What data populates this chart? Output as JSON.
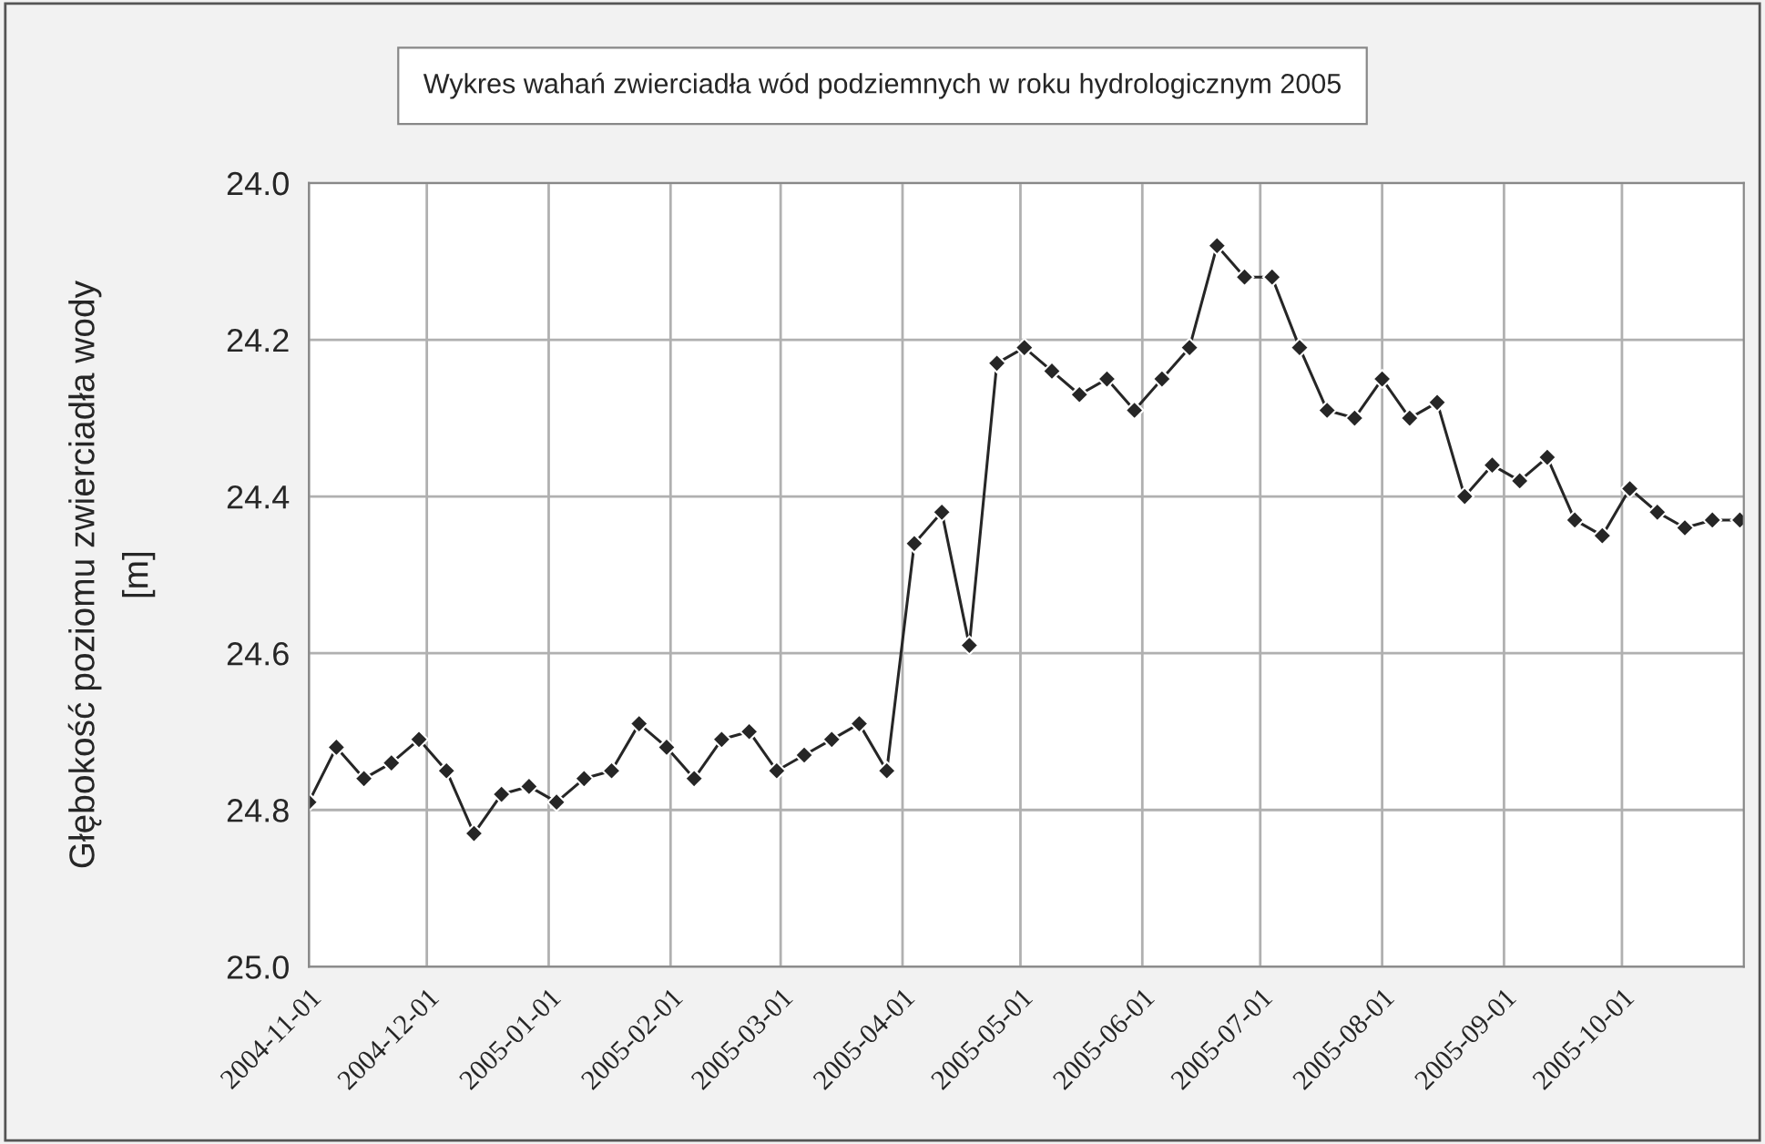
{
  "chart_data": {
    "type": "line",
    "title": "Wykres wahań zwierciadła wód podziemnych w roku hydrologicznym 2005",
    "ylabel": "Głębokość poziomu zwierciadła wody\n[m]",
    "x": [
      "2004-11-01",
      "2004-11-08",
      "2004-11-15",
      "2004-11-22",
      "2004-11-29",
      "2004-12-06",
      "2004-12-13",
      "2004-12-20",
      "2004-12-27",
      "2005-01-03",
      "2005-01-10",
      "2005-01-17",
      "2005-01-24",
      "2005-01-31",
      "2005-02-07",
      "2005-02-14",
      "2005-02-21",
      "2005-02-28",
      "2005-03-07",
      "2005-03-14",
      "2005-03-21",
      "2005-03-28",
      "2005-04-04",
      "2005-04-11",
      "2005-04-18",
      "2005-04-25",
      "2005-05-02",
      "2005-05-09",
      "2005-05-16",
      "2005-05-23",
      "2005-05-30",
      "2005-06-06",
      "2005-06-13",
      "2005-06-20",
      "2005-06-27",
      "2005-07-04",
      "2005-07-11",
      "2005-07-18",
      "2005-07-25",
      "2005-08-01",
      "2005-08-08",
      "2005-08-15",
      "2005-08-22",
      "2005-08-29",
      "2005-09-05",
      "2005-09-12",
      "2005-09-19",
      "2005-09-26",
      "2005-10-03",
      "2005-10-10",
      "2005-10-17",
      "2005-10-24",
      "2005-10-31"
    ],
    "series": [
      {
        "color": "#262626",
        "values": [
          24.79,
          24.72,
          24.76,
          24.74,
          24.71,
          24.75,
          24.83,
          24.78,
          24.77,
          24.79,
          24.76,
          24.75,
          24.69,
          24.72,
          24.76,
          24.71,
          24.7,
          24.75,
          24.73,
          24.71,
          24.69,
          24.75,
          24.46,
          24.42,
          24.59,
          24.23,
          24.21,
          24.24,
          24.27,
          24.25,
          24.29,
          24.25,
          24.21,
          24.08,
          24.12,
          24.12,
          24.21,
          24.29,
          24.3,
          24.25,
          24.3,
          24.28,
          24.4,
          24.36,
          24.38,
          24.35,
          24.43,
          24.45,
          24.39,
          24.42,
          24.44,
          24.43,
          24.43
        ]
      }
    ],
    "xlim": [
      "2004-11-01",
      "2005-11-01"
    ],
    "xticks": [
      "2004-11-01",
      "2004-12-01",
      "2005-01-01",
      "2005-02-01",
      "2005-03-01",
      "2005-04-01",
      "2005-05-01",
      "2005-06-01",
      "2005-07-01",
      "2005-08-01",
      "2005-09-01",
      "2005-10-01"
    ],
    "ylim": [
      25.0,
      24.0
    ],
    "yticks": [
      {
        "value": 24.0,
        "label": "24.0"
      },
      {
        "value": 24.2,
        "label": "24.2"
      },
      {
        "value": 24.4,
        "label": "24.4"
      },
      {
        "value": 24.6,
        "label": "24.6"
      },
      {
        "value": 24.8,
        "label": "24.8"
      },
      {
        "value": 25.0,
        "label": "25.0"
      }
    ],
    "grid": true,
    "marker": "diamond",
    "line_style": "solid",
    "legend": false
  }
}
